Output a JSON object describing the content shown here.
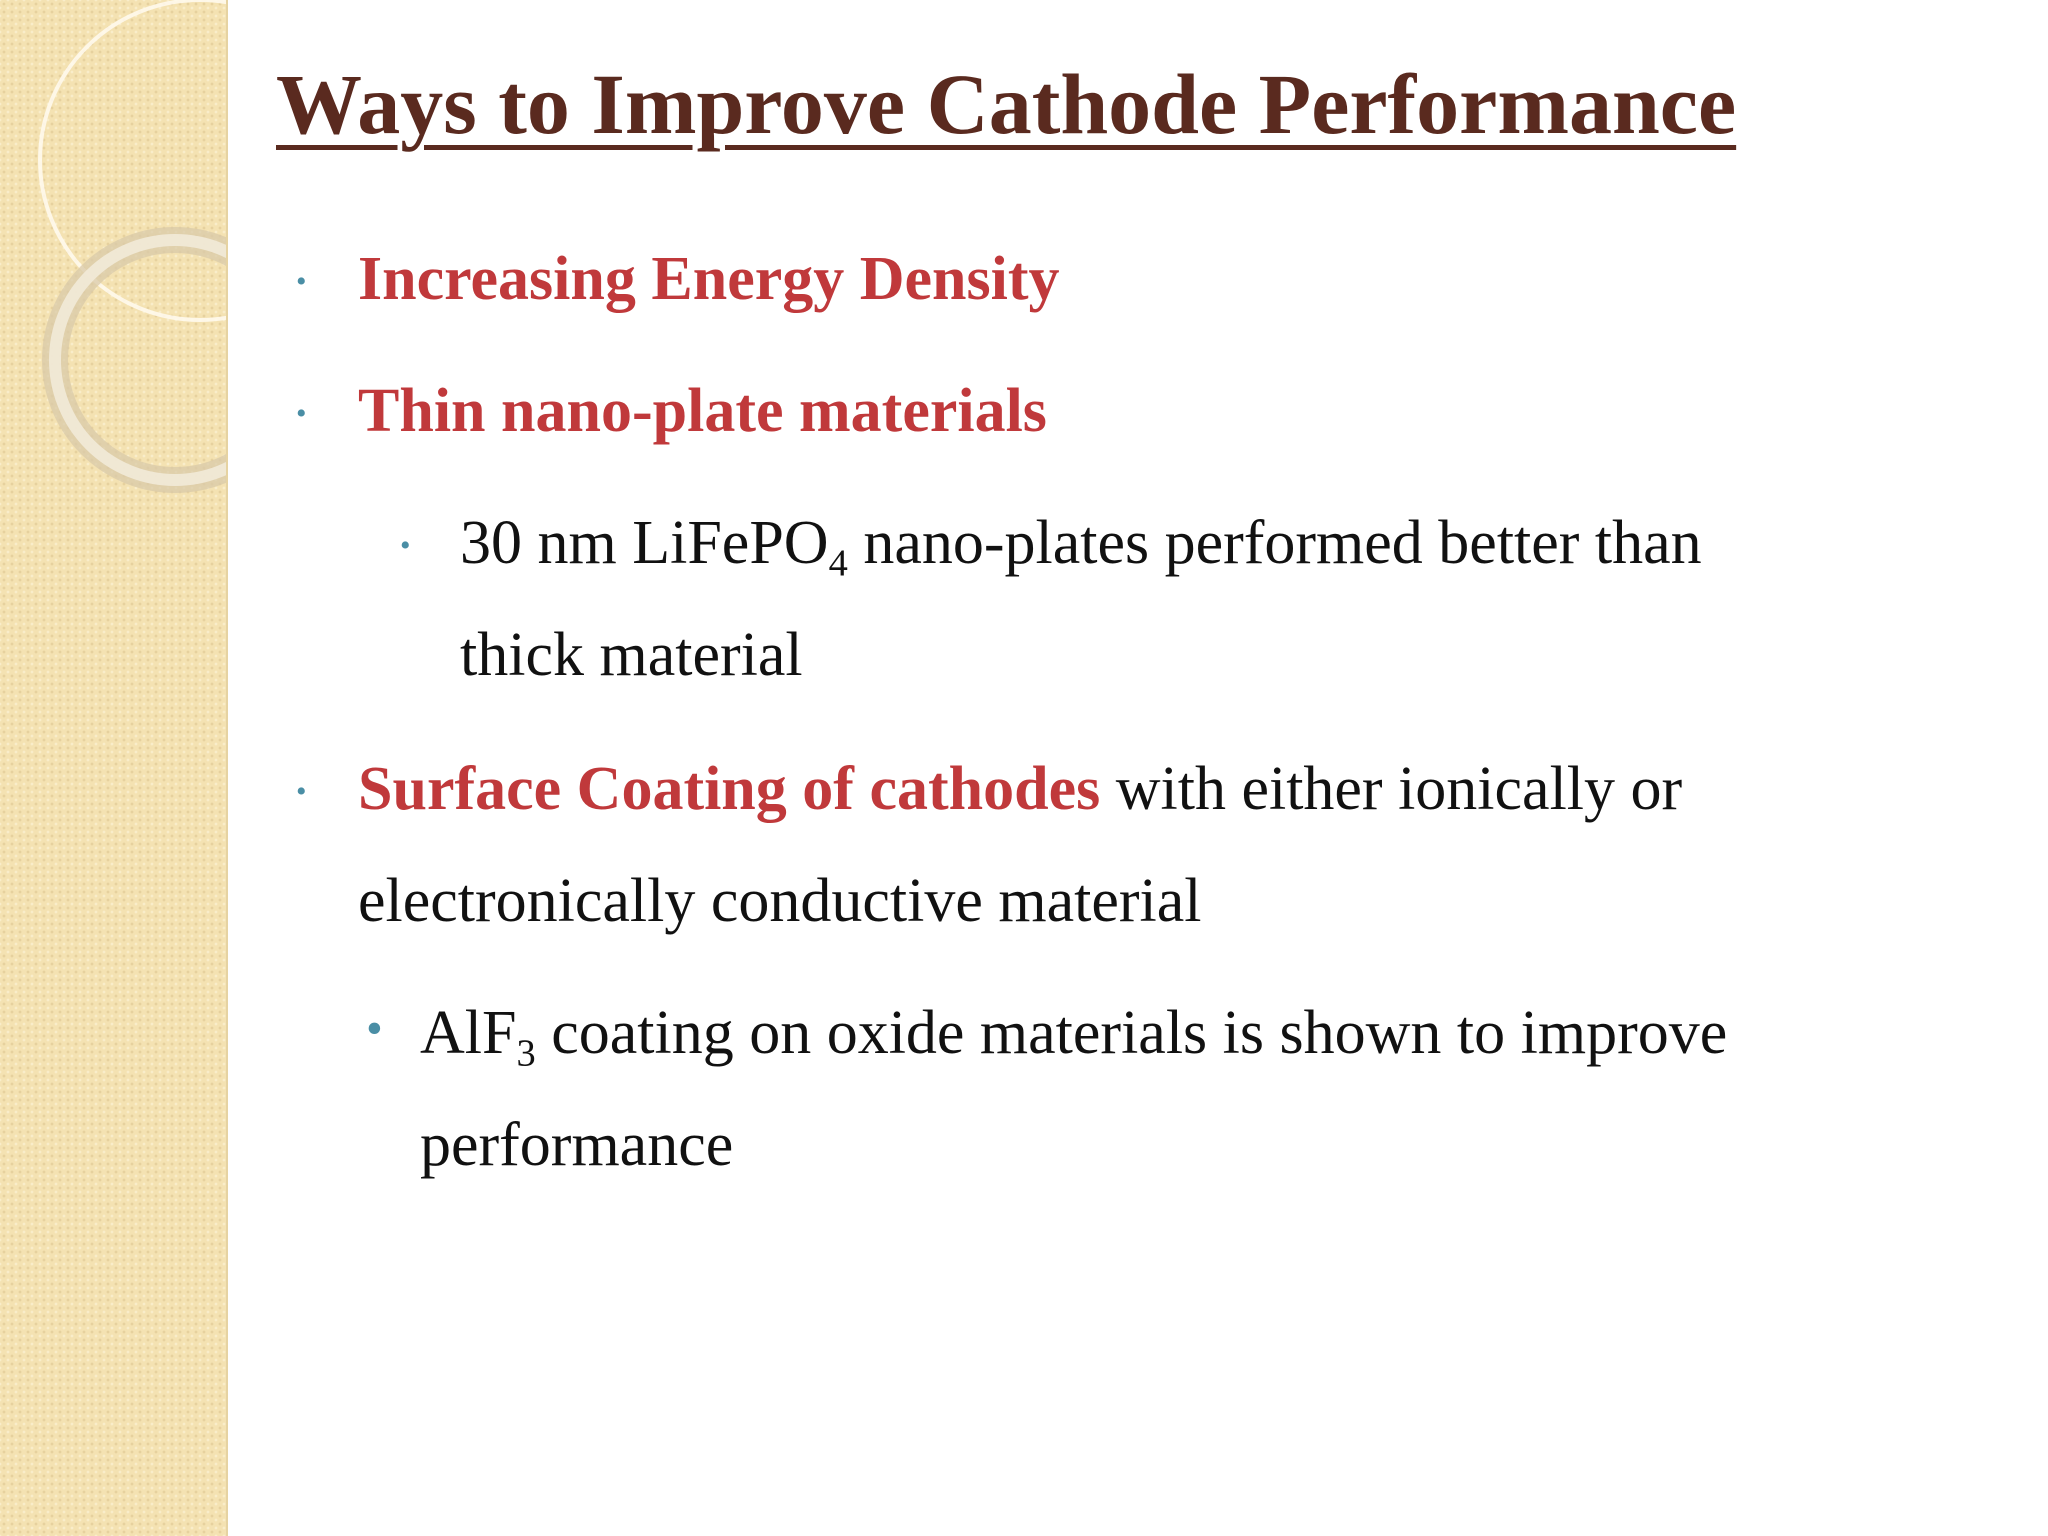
{
  "slide": {
    "title": "Ways to Improve Cathode Performance",
    "bullets": [
      {
        "text": "Increasing Energy Density"
      },
      {
        "text": "Thin nano-plate materials"
      },
      {
        "line1_pre": "30 nm LiFePO",
        "line1_sub": "4",
        "line1_post": " nano-plates performed better than",
        "line2": "thick material"
      },
      {
        "highlight": "Surface Coating of cathodes",
        "rest": " with either ionically or",
        "line2": "electronically conductive material"
      },
      {
        "line1_pre": "AlF",
        "line1_sub": "3",
        "line1_post": " coating on oxide materials is shown to improve",
        "line2": "performance"
      }
    ]
  },
  "colors": {
    "title": "#5a2a1f",
    "highlight": "#c0393b",
    "bullet": "#4a8ea5",
    "band": "#f4e2b2"
  }
}
